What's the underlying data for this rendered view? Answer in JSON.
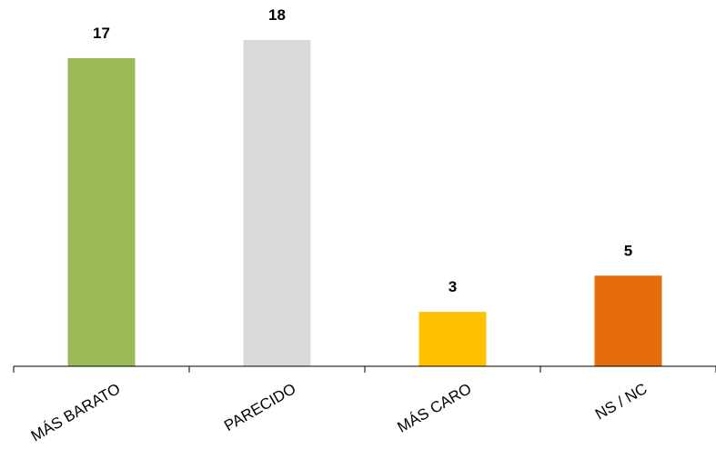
{
  "chart_data": {
    "type": "bar",
    "categories": [
      "MÁS BARATO",
      "PARECIDO",
      "MÁS CARO",
      "NS / NC"
    ],
    "values": [
      17,
      18,
      3,
      5
    ],
    "colors": [
      "#9bbb59",
      "#d9d9d9",
      "#ffc000",
      "#e46c0a"
    ],
    "ylim": [
      0,
      19.4
    ],
    "grid": false,
    "legend": "none",
    "data_labels": true
  }
}
